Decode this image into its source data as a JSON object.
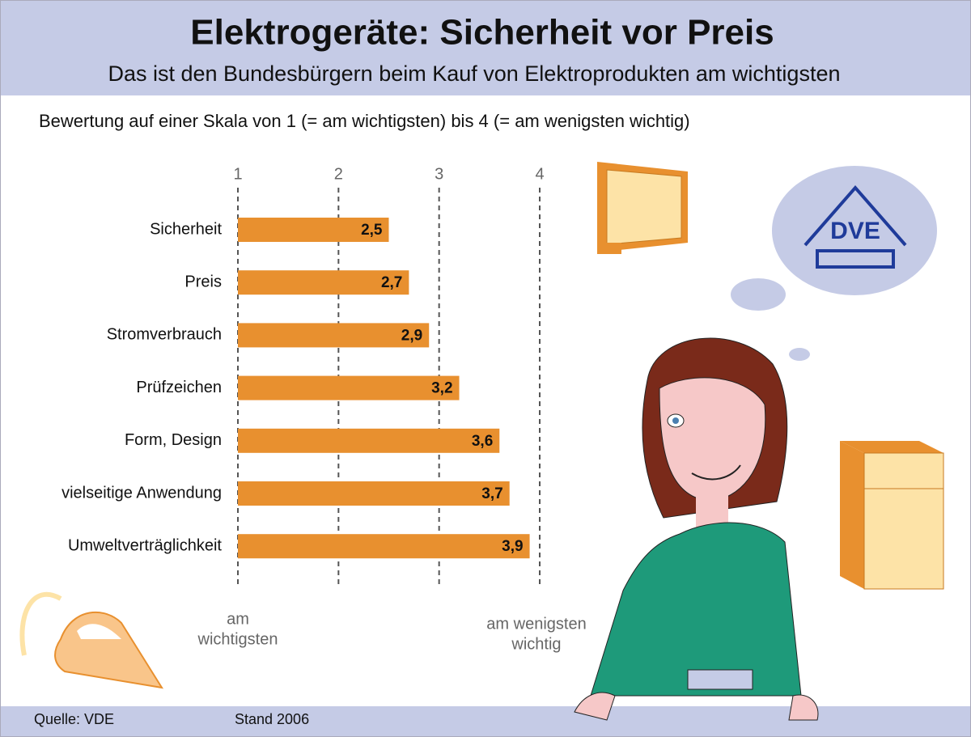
{
  "chart_data": {
    "type": "bar",
    "orientation": "horizontal",
    "title": "Elektrogeräte: Sicherheit vor Preis",
    "subtitle": "Das ist den Bundesbürgern beim Kauf von Elektroprodukten am wichtigsten",
    "description": "Bewertung auf einer Skala von 1 (= am wichtigsten) bis 4 (= am wenigsten wichtig)",
    "categories": [
      "Sicherheit",
      "Preis",
      "Stromverbrauch",
      "Prüfzeichen",
      "Form, Design",
      "vielseitige Anwendung",
      "Umweltverträglichkeit"
    ],
    "values": [
      2.5,
      2.7,
      2.9,
      3.2,
      3.6,
      3.7,
      3.9
    ],
    "value_labels": [
      "2,5",
      "2,7",
      "2,9",
      "3,2",
      "3,6",
      "3,7",
      "3,9"
    ],
    "color": "#e8902f",
    "xlim": [
      1,
      4
    ],
    "xticks": [
      1,
      2,
      3,
      4
    ],
    "grid": true,
    "x_low_label": [
      "am",
      "wichtigsten"
    ],
    "x_high_label": [
      "am wenigsten",
      "wichtig"
    ],
    "source": "Quelle: VDE",
    "date": "Stand 2006",
    "logo": "DVE"
  }
}
